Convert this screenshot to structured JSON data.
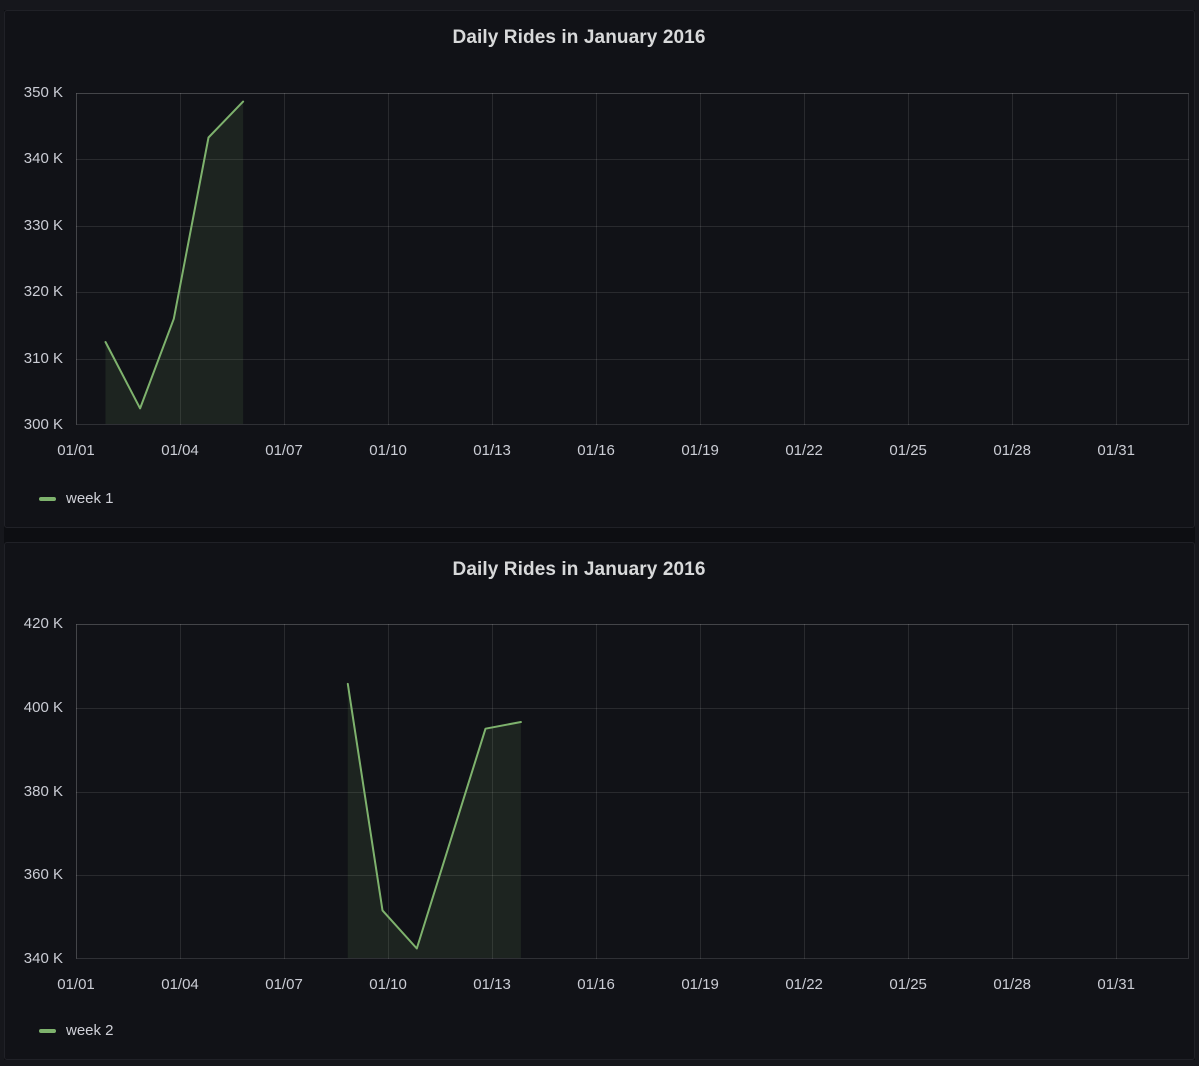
{
  "colors": {
    "series_green": "#7EB26D",
    "grid": "rgba(255,255,255,0.10)",
    "plot_border": "rgba(255,255,255,0.13)",
    "tick_text": "#cbcdd5",
    "title_text": "#d8d9da",
    "panel_bg": "#111217",
    "page_bg": "#16171c"
  },
  "panels": [
    {
      "title": "Daily Rides in January 2016",
      "legend": {
        "label": "week 1"
      }
    },
    {
      "title": "Daily Rides in January 2016",
      "legend": {
        "label": "week 2"
      }
    }
  ],
  "chart_data": [
    {
      "type": "area",
      "title": "Daily Rides in January 2016",
      "legend_position": "bottom-left",
      "grid": true,
      "x_domain_days": [
        0,
        32.1
      ],
      "x_ticks": [
        {
          "day": 0,
          "label": "01/01"
        },
        {
          "day": 3,
          "label": "01/04"
        },
        {
          "day": 6,
          "label": "01/07"
        },
        {
          "day": 9,
          "label": "01/10"
        },
        {
          "day": 12,
          "label": "01/13"
        },
        {
          "day": 15,
          "label": "01/16"
        },
        {
          "day": 18,
          "label": "01/19"
        },
        {
          "day": 21,
          "label": "01/22"
        },
        {
          "day": 24,
          "label": "01/25"
        },
        {
          "day": 27,
          "label": "01/28"
        },
        {
          "day": 30,
          "label": "01/31"
        }
      ],
      "y_axis": {
        "min_k": 300,
        "max_k": 350,
        "step_k": 10
      },
      "y_ticks": [
        {
          "value_k": 300,
          "label": "300 K"
        },
        {
          "value_k": 310,
          "label": "310 K"
        },
        {
          "value_k": 320,
          "label": "320 K"
        },
        {
          "value_k": 330,
          "label": "330 K"
        },
        {
          "value_k": 340,
          "label": "340 K"
        },
        {
          "value_k": 350,
          "label": "350 K"
        }
      ],
      "series": [
        {
          "name": "week 1",
          "color": "#7EB26D",
          "fill_opacity": 0.11,
          "points": [
            {
              "date": "01/02",
              "day": 0.85,
              "rides_k": 312.5
            },
            {
              "date": "01/03",
              "day": 1.85,
              "rides_k": 302.5
            },
            {
              "date": "01/04",
              "day": 2.82,
              "rides_k": 316.0
            },
            {
              "date": "01/05",
              "day": 3.82,
              "rides_k": 343.3
            },
            {
              "date": "01/06",
              "day": 4.82,
              "rides_k": 348.7
            }
          ]
        }
      ]
    },
    {
      "type": "area",
      "title": "Daily Rides in January 2016",
      "legend_position": "bottom-left",
      "grid": true,
      "x_domain_days": [
        0,
        32.1
      ],
      "x_ticks": [
        {
          "day": 0,
          "label": "01/01"
        },
        {
          "day": 3,
          "label": "01/04"
        },
        {
          "day": 6,
          "label": "01/07"
        },
        {
          "day": 9,
          "label": "01/10"
        },
        {
          "day": 12,
          "label": "01/13"
        },
        {
          "day": 15,
          "label": "01/16"
        },
        {
          "day": 18,
          "label": "01/19"
        },
        {
          "day": 21,
          "label": "01/22"
        },
        {
          "day": 24,
          "label": "01/25"
        },
        {
          "day": 27,
          "label": "01/28"
        },
        {
          "day": 30,
          "label": "01/31"
        }
      ],
      "y_axis": {
        "min_k": 340,
        "max_k": 420,
        "step_k": 20
      },
      "y_ticks": [
        {
          "value_k": 340,
          "label": "340 K"
        },
        {
          "value_k": 360,
          "label": "360 K"
        },
        {
          "value_k": 380,
          "label": "380 K"
        },
        {
          "value_k": 400,
          "label": "400 K"
        },
        {
          "value_k": 420,
          "label": "420 K"
        }
      ],
      "series": [
        {
          "name": "week 2",
          "color": "#7EB26D",
          "fill_opacity": 0.11,
          "points": [
            {
              "date": "01/09",
              "day": 7.84,
              "rides_k": 405.7
            },
            {
              "date": "01/10",
              "day": 8.84,
              "rides_k": 351.6
            },
            {
              "date": "01/11",
              "day": 9.83,
              "rides_k": 342.5
            },
            {
              "date": "01/13",
              "day": 11.81,
              "rides_k": 395.0
            },
            {
              "date": "01/14",
              "day": 12.83,
              "rides_k": 396.6
            }
          ]
        }
      ]
    }
  ]
}
